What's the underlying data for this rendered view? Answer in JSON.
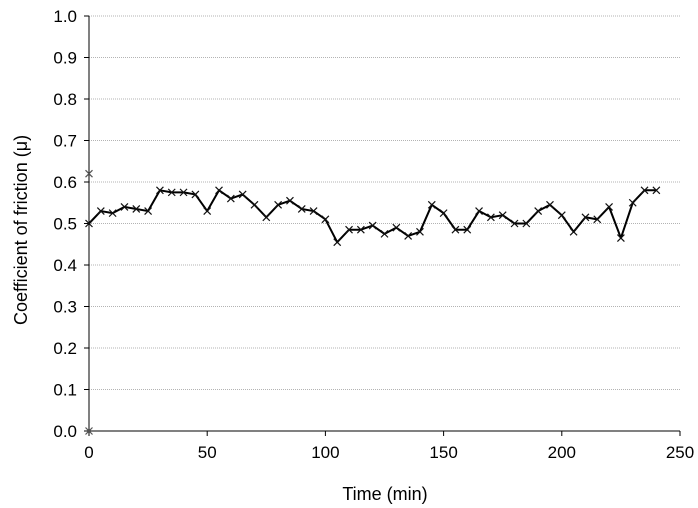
{
  "chart_data": {
    "type": "line",
    "title": "",
    "xlabel": "Time (min)",
    "ylabel": "Coefficient of friction (μ)",
    "xlim": [
      0,
      250
    ],
    "ylim": [
      0.0,
      1.0
    ],
    "xticks": [
      0,
      50,
      100,
      150,
      200,
      250
    ],
    "yticks": [
      0.0,
      0.1,
      0.2,
      0.3,
      0.4,
      0.5,
      0.6,
      0.7,
      0.8,
      0.9,
      1.0
    ],
    "xtick_labels": [
      "0",
      "50",
      "100",
      "150",
      "200",
      "250"
    ],
    "ytick_labels": [
      "0.0",
      "0.1",
      "0.2",
      "0.3",
      "0.4",
      "0.5",
      "0.6",
      "0.7",
      "0.8",
      "0.9",
      "1.0"
    ],
    "grid": "horizontal",
    "line_color": "#000000",
    "grid_color": "#9a9a9a",
    "marker": "x",
    "series": [
      {
        "x": [
          0,
          5,
          10,
          15,
          20,
          25,
          30,
          35,
          40,
          45,
          50,
          55,
          60,
          65,
          70,
          75,
          80,
          85,
          90,
          95,
          100,
          105,
          110,
          115,
          120,
          125,
          130,
          135,
          140,
          145,
          150,
          155,
          160,
          165,
          170,
          175,
          180,
          185,
          190,
          195,
          200,
          205,
          210,
          215,
          220,
          225,
          230,
          235,
          240
        ],
        "y": [
          0.5,
          0.53,
          0.525,
          0.54,
          0.535,
          0.53,
          0.58,
          0.575,
          0.575,
          0.57,
          0.53,
          0.58,
          0.56,
          0.57,
          0.545,
          0.515,
          0.545,
          0.555,
          0.535,
          0.53,
          0.51,
          0.455,
          0.485,
          0.485,
          0.495,
          0.475,
          0.49,
          0.47,
          0.48,
          0.545,
          0.525,
          0.485,
          0.485,
          0.53,
          0.515,
          0.52,
          0.5,
          0.5,
          0.53,
          0.545,
          0.52,
          0.48,
          0.515,
          0.51,
          0.54,
          0.465,
          0.55,
          0.58,
          0.58
        ]
      }
    ],
    "outliers": [
      {
        "x": 0,
        "y": 0.62
      },
      {
        "x": 0,
        "y": 0.0
      }
    ]
  }
}
